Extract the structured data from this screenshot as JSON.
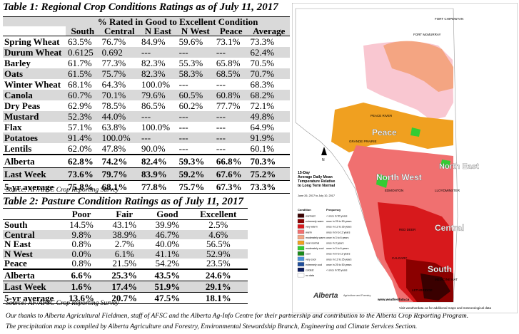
{
  "table1": {
    "title": "Table 1: Regional Crop Conditions Ratings as of July 11, 2017",
    "group_header": "% Rated in Good to Excellent Condition",
    "columns": [
      "South",
      "Central",
      "N East",
      "N West",
      "Peace",
      "Average"
    ],
    "rows": [
      {
        "crop": "Spring Wheat",
        "values": [
          "63.5%",
          "76.7%",
          "84.9%",
          "59.6%",
          "73.1%",
          "73.3%"
        ]
      },
      {
        "crop": "Durum Wheat",
        "values": [
          "0.6125",
          "0.692",
          "---",
          "---",
          "---",
          "62.4%"
        ]
      },
      {
        "crop": "Barley",
        "values": [
          "61.7%",
          "77.3%",
          "82.3%",
          "55.3%",
          "65.8%",
          "70.5%"
        ]
      },
      {
        "crop": "Oats",
        "values": [
          "61.5%",
          "75.7%",
          "82.3%",
          "58.3%",
          "68.5%",
          "70.7%"
        ]
      },
      {
        "crop": "Winter Wheat",
        "values": [
          "68.1%",
          "64.3%",
          "100.0%",
          "---",
          "---",
          "68.3%"
        ]
      },
      {
        "crop": "Canola",
        "values": [
          "60.7%",
          "70.1%",
          "79.6%",
          "60.5%",
          "60.8%",
          "68.2%"
        ]
      },
      {
        "crop": "Dry Peas",
        "values": [
          "62.9%",
          "78.5%",
          "86.5%",
          "60.2%",
          "77.7%",
          "72.1%"
        ]
      },
      {
        "crop": "Mustard",
        "values": [
          "52.3%",
          "44.0%",
          "---",
          "---",
          "---",
          "49.8%"
        ]
      },
      {
        "crop": "Flax",
        "values": [
          "57.1%",
          "63.8%",
          "100.0%",
          "---",
          "---",
          "64.9%"
        ]
      },
      {
        "crop": "Potatoes",
        "values": [
          "91.4%",
          "100.0%",
          "---",
          "---",
          "---",
          "91.9%"
        ]
      },
      {
        "crop": "Lentils",
        "values": [
          "62.0%",
          "47.8%",
          "90.0%",
          "---",
          "---",
          "60.1%"
        ]
      }
    ],
    "summary": [
      {
        "label": "Alberta",
        "values": [
          "62.8%",
          "74.2%",
          "82.4%",
          "59.3%",
          "66.8%",
          "70.3%"
        ]
      },
      {
        "label": "Last Week",
        "values": [
          "73.6%",
          "79.7%",
          "83.9%",
          "59.2%",
          "67.6%",
          "75.2%"
        ]
      },
      {
        "label": "5-yr average",
        "values": [
          "75.8%",
          "68.1%",
          "77.8%",
          "75.7%",
          "67.3%",
          "73.3%"
        ]
      }
    ],
    "source": "Source: AF/AFSC Crop Reporting Survey"
  },
  "table2": {
    "title": "Table 2: Pasture Condition Ratings as of July 11, 2017",
    "columns": [
      "Poor",
      "Fair",
      "Good",
      "Excellent"
    ],
    "rows": [
      {
        "region": "South",
        "values": [
          "14.5%",
          "43.1%",
          "39.9%",
          "2.5%"
        ]
      },
      {
        "region": "Central",
        "values": [
          "9.8%",
          "38.9%",
          "46.7%",
          "4.6%"
        ]
      },
      {
        "region": "N East",
        "values": [
          "0.8%",
          "2.7%",
          "40.0%",
          "56.5%"
        ]
      },
      {
        "region": "N West",
        "values": [
          "0.0%",
          "6.1%",
          "41.1%",
          "52.9%"
        ]
      },
      {
        "region": "Peace",
        "values": [
          "0.8%",
          "21.5%",
          "54.2%",
          "23.5%"
        ]
      }
    ],
    "summary": [
      {
        "label": "Alberta",
        "values": [
          "6.6%",
          "25.3%",
          "43.5%",
          "24.6%"
        ]
      },
      {
        "label": "Last Week",
        "values": [
          "1.6%",
          "17.4%",
          "51.9%",
          "29.1%"
        ]
      },
      {
        "label": "5-yr average",
        "values": [
          "13.6%",
          "20.7%",
          "47.5%",
          "18.1%"
        ]
      }
    ],
    "source": "Source: AF/AFSC Crop Reporting Survey"
  },
  "footer": {
    "line1": "Our thanks to Alberta Agricultural Fieldmen, staff of AFSC and the Alberta Ag-Info Centre for their partnership and contribution to the Alberta Crop Reporting Program.",
    "line2": "The precipitation map is compiled by Alberta Agriculture and Forestry, Environmental Stewardship Branch, Engineering and Climate Services Section."
  },
  "map": {
    "region_labels": {
      "peace": "Peace",
      "north_west": "North West",
      "north_east": "North East",
      "central": "Central",
      "south": "South"
    },
    "city_labels": [
      "FORT McMURRAY",
      "GRANDE PRAIRIE",
      "PEACE RIVER",
      "EDMONTON",
      "RED DEER",
      "CALGARY",
      "LETHBRIDGE",
      "MEDICINE HAT",
      "LLOYDMINSTER",
      "FORT CHIPEWYAN"
    ],
    "map_title": "15-Day Average Daily Mean Temperature Relative to Long Term Normal",
    "date_range": "June 26, 2017 to July 10, 2017",
    "website": "www.weatherdata.ca",
    "bottom_note": "Visit weatherdata.ca for additional maps and meteorological data",
    "legend": {
      "condition_header": "Condition",
      "frequency_header": "Frequency",
      "items": [
        {
          "condition": "warmest",
          "frequency": "< once in 50 years",
          "color": "#3a0000"
        },
        {
          "condition": "extremely warm",
          "frequency": "once in 25 to 50 years",
          "color": "#8b0000"
        },
        {
          "condition": "very warm",
          "frequency": "once in 12 to 25 years",
          "color": "#d7191c"
        },
        {
          "condition": "warm",
          "frequency": "once in 6 to 12 years",
          "color": "#f07070"
        },
        {
          "condition": "moderately warm",
          "frequency": "once in 3 to 6 years",
          "color": "#f4a582"
        },
        {
          "condition": "near normal",
          "frequency": "once in 3 years",
          "color": "#f0a020"
        },
        {
          "condition": "moderately cool",
          "frequency": "once in 3 to 6 years",
          "color": "#33cc33"
        },
        {
          "condition": "cool",
          "frequency": "once in 6 to 12 years",
          "color": "#1a8a1a"
        },
        {
          "condition": "very cool",
          "frequency": "once in 12 to 25 years",
          "color": "#4a90d9"
        },
        {
          "condition": "extremely cool",
          "frequency": "once in 25 to 50 years",
          "color": "#1f4e9c"
        },
        {
          "condition": "coldest",
          "frequency": "< once in 50 years",
          "color": "#0a1a5c"
        },
        {
          "condition": "no data",
          "frequency": "",
          "color": "#ffffff"
        }
      ]
    },
    "logo_text": "Alberta",
    "logo_sub": "Agriculture and Forestry"
  }
}
